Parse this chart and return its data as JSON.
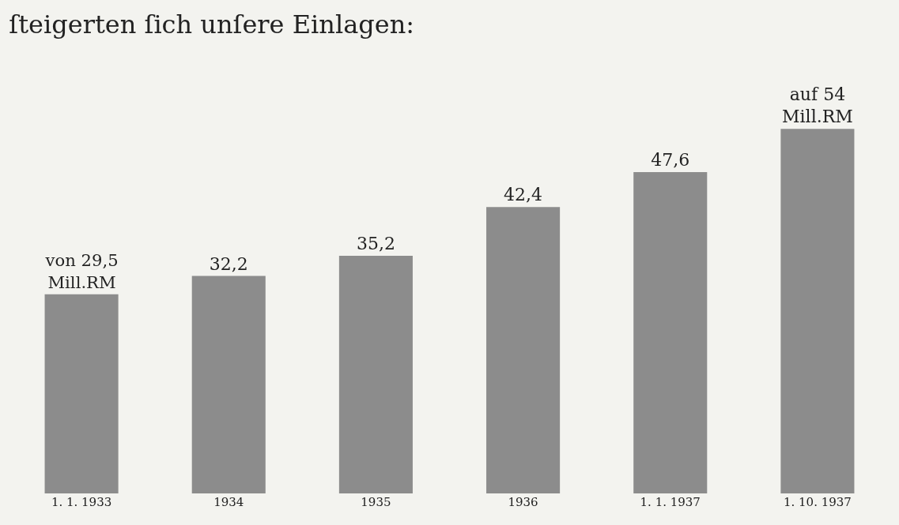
{
  "chart_data": {
    "type": "bar",
    "title": "ſteigerten ſich unſere Einlagen:",
    "categories": [
      "1. 1. 1933",
      "1934",
      "1935",
      "1936",
      "1. 1. 1937",
      "1. 10. 1937"
    ],
    "values": [
      29.5,
      32.2,
      35.2,
      42.4,
      47.6,
      54
    ],
    "value_labels": [
      "von 29,5\nMill.RM",
      "32,2",
      "35,2",
      "42,4",
      "47,6",
      "auf 54\nMill.RM"
    ],
    "color": "#8c8c8c",
    "grid": false,
    "legend": false
  }
}
